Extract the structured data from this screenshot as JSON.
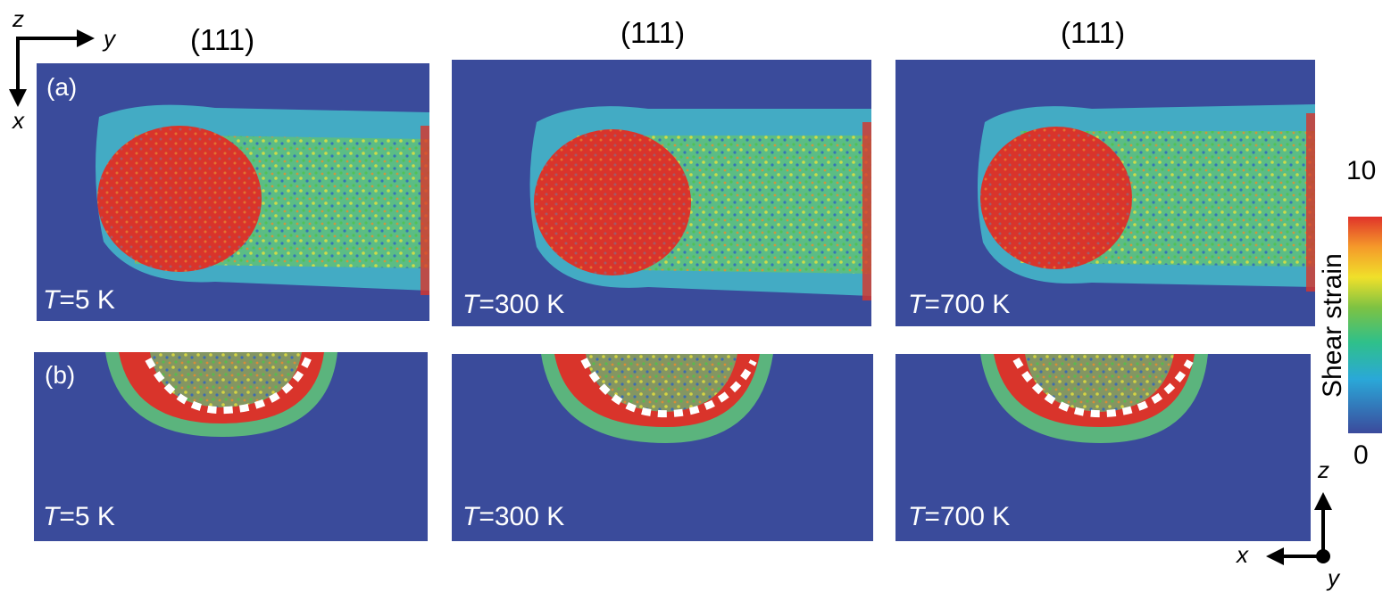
{
  "column_titles": [
    "(111)",
    "(111)",
    "(111)"
  ],
  "panel_labels": {
    "a": "(a)",
    "b": "(b)"
  },
  "temperatures": [
    {
      "symbol": "T",
      "value": "=5 K"
    },
    {
      "symbol": "T",
      "value": "=300 K"
    },
    {
      "symbol": "T",
      "value": "=700 K"
    }
  ],
  "axes_top_left": {
    "horizontal": "y",
    "vertical_up": "z",
    "vertical_down": "x"
  },
  "axes_bottom_right": {
    "up": "z",
    "left": "x",
    "out": "y"
  },
  "colorbar": {
    "title": "Shear strain",
    "max_label": "10",
    "min_label": "0",
    "colors": [
      "#3b4a9c",
      "#2aa8d8",
      "#2fc08a",
      "#7dc243",
      "#f0e02a",
      "#f59a2a",
      "#e0332a"
    ]
  },
  "colors": {
    "background_blue": "#3a4b9b",
    "strain_red": "#d9342b",
    "strain_green": "#6fc25a",
    "strain_cyan": "#44b8d9",
    "dashed_line": "#ffffff"
  }
}
